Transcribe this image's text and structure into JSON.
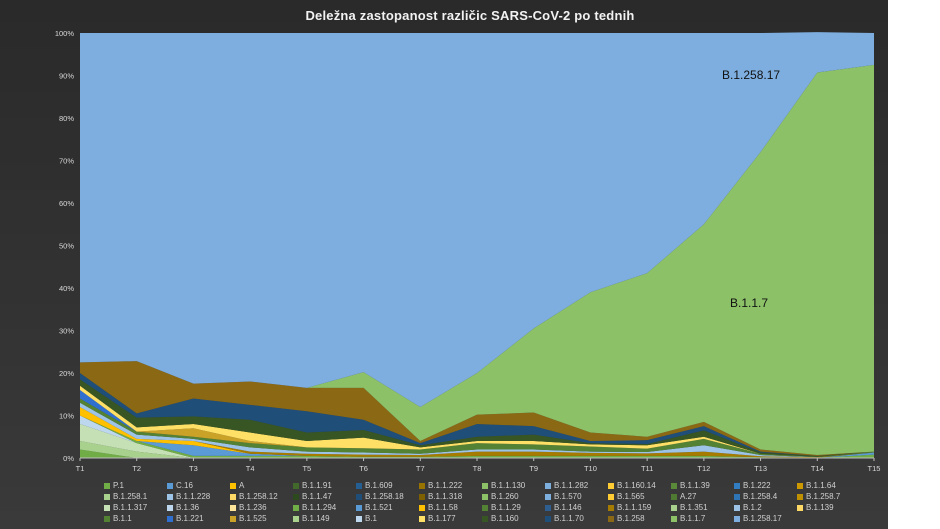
{
  "chart_data": {
    "type": "area",
    "stacked": true,
    "title": "Deležna zastopanost različic SARS-CoV-2 po tednih",
    "categories": [
      "T1",
      "T2",
      "T3",
      "T4",
      "T5",
      "T6",
      "T7",
      "T8",
      "T9",
      "T10",
      "T11",
      "T12",
      "T13",
      "T14",
      "T15"
    ],
    "y_ticks": [
      "0%",
      "10%",
      "20%",
      "30%",
      "40%",
      "50%",
      "60%",
      "70%",
      "80%",
      "90%",
      "100%"
    ],
    "ylim": [
      0,
      100
    ],
    "legend_position": "bottom",
    "annotations": [
      {
        "text": "B.1.258.17",
        "series": "B.1.258.17"
      },
      {
        "text": "B.1.1.7",
        "series": "B.1.1.7"
      }
    ],
    "series": [
      {
        "name": "P.1",
        "color": "#70ad47",
        "values": [
          2,
          0,
          0,
          0,
          0,
          0,
          0,
          0,
          0,
          0,
          0,
          0,
          0,
          0,
          0.8
        ]
      },
      {
        "name": "C.16",
        "color": "#5b9bd5",
        "values": [
          0,
          0,
          0,
          0,
          0,
          0,
          0,
          0,
          0,
          0,
          0,
          0,
          0,
          0,
          0.5
        ]
      },
      {
        "name": "A",
        "color": "#ffc000",
        "values": [
          0,
          0,
          0,
          0,
          0,
          0,
          0,
          0,
          0,
          0,
          0,
          0,
          0,
          0,
          0
        ]
      },
      {
        "name": "B.1.1.91",
        "color": "#43682b",
        "values": [
          0,
          0,
          0,
          0,
          0,
          0,
          0,
          0,
          0,
          0,
          0,
          0,
          0,
          0,
          0
        ]
      },
      {
        "name": "B.1.609",
        "color": "#255e91",
        "values": [
          0,
          0,
          0,
          0,
          0,
          0,
          0,
          0,
          0,
          0,
          0,
          0,
          0,
          0,
          0
        ]
      },
      {
        "name": "B.1.1.222",
        "color": "#997300",
        "values": [
          0,
          0,
          0,
          0,
          0,
          0,
          0,
          0,
          0,
          0,
          0,
          0,
          0,
          0,
          0
        ]
      },
      {
        "name": "B.1.1.130",
        "color": "#8cc168",
        "values": [
          0,
          0,
          0,
          0,
          0,
          0,
          0,
          0,
          0,
          0,
          0,
          0,
          0,
          0,
          0
        ]
      },
      {
        "name": "B.1.1.282",
        "color": "#7cafdd",
        "values": [
          0,
          0,
          0,
          0,
          0,
          0,
          0,
          0,
          0,
          0,
          0,
          0,
          0,
          0,
          0
        ]
      },
      {
        "name": "B.1.160.14",
        "color": "#ffcd33",
        "values": [
          0,
          0,
          0,
          0,
          0,
          0,
          0,
          0,
          0,
          0,
          0,
          0,
          0,
          0,
          0
        ]
      },
      {
        "name": "B.1.1.39",
        "color": "#5a8a39",
        "values": [
          0,
          0,
          0,
          0,
          0,
          0,
          0,
          0,
          0,
          0,
          0,
          0,
          0,
          0,
          0
        ]
      },
      {
        "name": "B.1.222",
        "color": "#327dc2",
        "values": [
          0,
          0,
          0,
          0,
          0,
          0,
          0,
          0,
          0,
          0,
          0,
          0,
          0,
          0,
          0
        ]
      },
      {
        "name": "B.1.1.64",
        "color": "#cc9a00",
        "values": [
          0,
          0,
          0,
          0,
          0,
          0,
          0,
          0,
          0,
          0,
          0,
          0,
          0,
          0,
          0
        ]
      },
      {
        "name": "B.1.258.1",
        "color": "#a9d18e",
        "values": [
          2,
          1.5,
          0,
          0,
          0,
          0,
          0,
          0,
          0,
          0,
          0,
          0,
          0,
          0,
          0
        ]
      },
      {
        "name": "B.1.1.228",
        "color": "#9dc3e6",
        "values": [
          0,
          0,
          0,
          0,
          0,
          0,
          0,
          0,
          0,
          0,
          0,
          0,
          0,
          0,
          0
        ]
      },
      {
        "name": "B.1.258.12",
        "color": "#ffd966",
        "values": [
          0,
          0,
          0,
          0,
          0,
          0,
          0,
          0,
          0,
          0,
          0,
          0,
          0,
          0,
          0
        ]
      },
      {
        "name": "B.1.1.47",
        "color": "#2d4a1e",
        "values": [
          0,
          0,
          0,
          0,
          0,
          0,
          0,
          0,
          0,
          0,
          0,
          0,
          0,
          0,
          0
        ]
      },
      {
        "name": "B.1.258.18",
        "color": "#1f4e79",
        "values": [
          0,
          0,
          0,
          0,
          0,
          0,
          0,
          0,
          0,
          0,
          0,
          0,
          0,
          0,
          0
        ]
      },
      {
        "name": "B.1.1.318",
        "color": "#7f6000",
        "values": [
          0,
          0,
          0,
          0,
          0,
          0,
          0,
          0,
          0,
          0,
          0,
          0,
          0,
          0,
          0
        ]
      },
      {
        "name": "B.1.260",
        "color": "#8cc168",
        "values": [
          0,
          0,
          0,
          0,
          0,
          0,
          0,
          0,
          0,
          0,
          0,
          0,
          0,
          0,
          0
        ]
      },
      {
        "name": "B.1.570",
        "color": "#7cafdd",
        "values": [
          0,
          0,
          0,
          0,
          0,
          0,
          0,
          0,
          0,
          0,
          0,
          0,
          0,
          0,
          0
        ]
      },
      {
        "name": "B.1.565",
        "color": "#ffcd33",
        "values": [
          0,
          0,
          0,
          0,
          0,
          0,
          0,
          0,
          0,
          0,
          0,
          0,
          0,
          0,
          0
        ]
      },
      {
        "name": "A.27",
        "color": "#4e7a31",
        "values": [
          0,
          0,
          0,
          0,
          0,
          0,
          0,
          0,
          0,
          0,
          0,
          0,
          0,
          0,
          0
        ]
      },
      {
        "name": "B.1.258.4",
        "color": "#2e75b6",
        "values": [
          0,
          0,
          0,
          0,
          0,
          0,
          0,
          0,
          0,
          0,
          0,
          0,
          0,
          0,
          0
        ]
      },
      {
        "name": "B.1.258.7",
        "color": "#bf9000",
        "values": [
          0,
          0,
          0,
          0,
          0,
          0,
          0,
          0,
          0,
          0,
          0,
          0,
          0,
          0,
          0
        ]
      },
      {
        "name": "B.1.1.317",
        "color": "#c5e0b4",
        "values": [
          4,
          2,
          0,
          0,
          0,
          0,
          0,
          0,
          0,
          0,
          0,
          0,
          0,
          0,
          0
        ]
      },
      {
        "name": "B.1.36",
        "color": "#bdd7ee",
        "values": [
          2,
          0,
          0,
          0,
          0,
          0,
          0,
          0,
          0,
          0,
          0,
          0,
          0,
          0,
          0
        ]
      },
      {
        "name": "B.1.236",
        "color": "#ffe699",
        "values": [
          0,
          0,
          0,
          0,
          0,
          0,
          0,
          0,
          0,
          0,
          0,
          0,
          0,
          0,
          0
        ]
      },
      {
        "name": "B.1.1.294",
        "color": "#70ad47",
        "values": [
          0,
          0.5,
          0.5,
          0.5,
          0.5,
          0.3,
          0.3,
          0.5,
          0.5,
          0.5,
          0.5,
          0.5,
          0.2,
          0.1,
          0
        ]
      },
      {
        "name": "B.1.521",
        "color": "#5b9bd5",
        "values": [
          0,
          0,
          2.5,
          0.5,
          0,
          0,
          0,
          0,
          0,
          0,
          0,
          0,
          0,
          0,
          0
        ]
      },
      {
        "name": "B.1.1.58",
        "color": "#ffc000",
        "values": [
          2,
          0.5,
          1,
          0,
          0,
          0,
          0,
          0,
          0,
          0,
          0,
          0,
          0,
          0,
          0
        ]
      },
      {
        "name": "B.1.1.29",
        "color": "#548235",
        "values": [
          0,
          0,
          0,
          0,
          0,
          0,
          0,
          0,
          0,
          0,
          0,
          0,
          0,
          0,
          0
        ]
      },
      {
        "name": "B.1.146",
        "color": "#2e5d8f",
        "values": [
          0,
          0,
          0,
          0,
          0,
          0,
          0,
          0,
          0,
          0,
          0,
          0,
          0,
          0,
          0
        ]
      },
      {
        "name": "B.1.1.159",
        "color": "#a67c00",
        "values": [
          0,
          0,
          0,
          0.5,
          0.5,
          0.5,
          0.4,
          1,
          1,
          0.7,
          0.6,
          1,
          0.2,
          0.1,
          0
        ]
      },
      {
        "name": "B.1.351",
        "color": "#a9d18e",
        "values": [
          0,
          0,
          0,
          0,
          0,
          0,
          0,
          0,
          0,
          0,
          0,
          0,
          0,
          0,
          0
        ]
      },
      {
        "name": "B.1.2",
        "color": "#9dc3e6",
        "values": [
          1,
          1,
          0.5,
          1,
          0.5,
          0.5,
          0.3,
          0.5,
          0.5,
          0.3,
          0.3,
          1.5,
          0.3,
          0,
          0
        ]
      },
      {
        "name": "B.1.139",
        "color": "#ffd966",
        "values": [
          0,
          0,
          0,
          0,
          0,
          0,
          0,
          0,
          0,
          0,
          0,
          0,
          0,
          0,
          0
        ]
      },
      {
        "name": "B.1.1",
        "color": "#548235",
        "values": [
          1,
          0.7,
          0.5,
          1,
          1,
          1,
          1,
          1.5,
          1.2,
          1.2,
          0.8,
          1.5,
          0.3,
          0.1,
          0.2
        ]
      },
      {
        "name": "B.1.221",
        "color": "#2f6fd0",
        "values": [
          2,
          0,
          0,
          0,
          0,
          0,
          0,
          0,
          0,
          0,
          0,
          0,
          0,
          0,
          0
        ]
      },
      {
        "name": "B.1.525",
        "color": "#c9a227",
        "values": [
          0,
          0,
          2,
          0.5,
          0,
          0,
          0,
          0,
          0,
          0,
          0,
          0,
          0,
          0,
          0
        ]
      },
      {
        "name": "B.1.149",
        "color": "#a9d18e",
        "values": [
          0,
          0,
          0,
          0,
          0,
          0,
          0,
          0,
          0,
          0,
          0,
          0,
          0,
          0,
          0
        ]
      },
      {
        "name": "B.1",
        "color": "#bdd7ee",
        "values": [
          0,
          0,
          0,
          0,
          0,
          0,
          0,
          0,
          0,
          0,
          0,
          0,
          0,
          0,
          0
        ]
      },
      {
        "name": "B.1.177",
        "color": "#ffe066",
        "values": [
          1,
          1,
          1,
          2,
          1.5,
          2.5,
          0.5,
          0.5,
          0.8,
          0.5,
          0.8,
          0.5,
          0,
          0,
          0
        ]
      },
      {
        "name": "B.1.160",
        "color": "#375623",
        "values": [
          1.5,
          2.3,
          1.8,
          3,
          2,
          1.8,
          0.5,
          1,
          1.5,
          0.3,
          0.3,
          1.5,
          0.3,
          0.2,
          0
        ]
      },
      {
        "name": "B.1.1.70",
        "color": "#1f4e79",
        "values": [
          1.5,
          1,
          4.2,
          3.5,
          5,
          2.4,
          0.5,
          3,
          2,
          0.5,
          0.9,
          1,
          0.2,
          0,
          0
        ]
      },
      {
        "name": "B.1.258",
        "color": "#8b6914",
        "values": [
          2.5,
          12.3,
          3.5,
          5.5,
          5.5,
          7.5,
          0.5,
          2.2,
          3.2,
          2,
          0.8,
          1,
          0.5,
          0.2,
          0
        ]
      },
      {
        "name": "B.1.1.7",
        "color": "#8cc168",
        "values": [
          0,
          0,
          0,
          0,
          0,
          3.7,
          8,
          9.8,
          19.8,
          33,
          38.5,
          46.5,
          70,
          90,
          91
        ]
      },
      {
        "name": "B.1.258.17",
        "color": "#7eaedf",
        "values": [
          77.5,
          77.2,
          82.5,
          82,
          83.5,
          79.8,
          88,
          80,
          69.5,
          61,
          56.5,
          45,
          28,
          9.5,
          7.5
        ]
      }
    ]
  }
}
